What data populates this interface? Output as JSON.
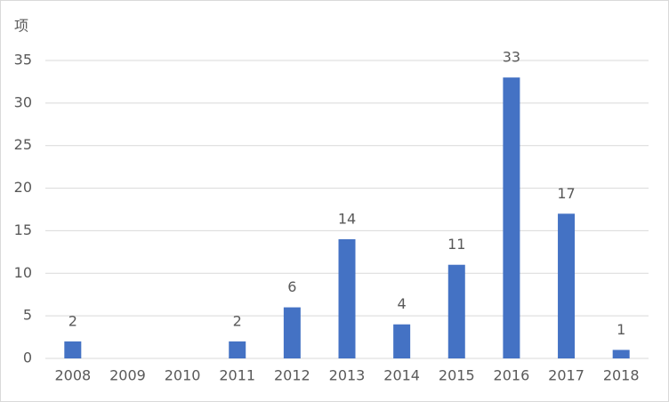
{
  "chart_data": {
    "type": "bar",
    "y_label": "项",
    "categories": [
      "2008",
      "2009",
      "2010",
      "2011",
      "2012",
      "2013",
      "2014",
      "2015",
      "2016",
      "2017",
      "2018"
    ],
    "values": [
      2,
      null,
      null,
      2,
      6,
      14,
      4,
      11,
      33,
      17,
      1
    ],
    "color": "#4472c4",
    "ylim": [
      0,
      35
    ],
    "yticks": [
      0,
      5,
      10,
      15,
      20,
      25,
      30,
      35
    ],
    "grid": true
  }
}
